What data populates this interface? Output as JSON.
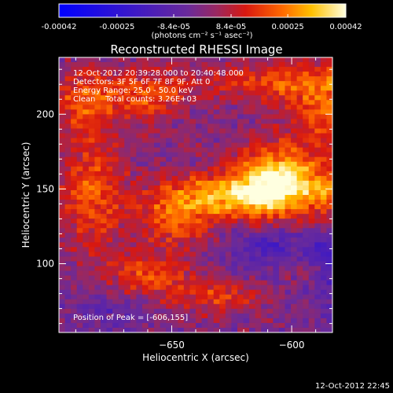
{
  "chart_data": {
    "type": "heatmap",
    "title": "Reconstructed RHESSI Image",
    "colorbar": {
      "tick_labels": [
        "-0.00042",
        "-0.00025",
        "-8.4e-05",
        "8.4e-05",
        "0.00025",
        "0.00042"
      ],
      "tick_values": [
        -0.00042,
        -0.00025,
        -8.4e-05,
        8.4e-05,
        0.00025,
        0.00042
      ],
      "range": [
        -0.00042,
        0.00042
      ],
      "units_label": "(photons cm⁻² s⁻¹ asec⁻²)"
    },
    "annotations": [
      "12-Oct-2012 20:39:28.000 to 20:40:48.000",
      "Detectors: 3F 5F 6F 7F 8F 9F, Att 0",
      "Energy Range: 25.0 - 50.0 keV",
      "Clean    Total counts: 3.26E+03"
    ],
    "peak_label": "Position of Peak = [-606,155]",
    "xlabel": "Heliocentric X (arcsec)",
    "ylabel": "Heliocentric Y (arcsec)",
    "xlim": [
      -697,
      -583
    ],
    "ylim": [
      54,
      238
    ],
    "xticks": [
      -650,
      -600,
      -550
    ],
    "yticks": [
      100,
      150,
      200
    ],
    "peak": [
      -606,
      155
    ],
    "sources": [
      {
        "x": -606,
        "y": 155,
        "amp": 0.0004,
        "sx": 12,
        "sy": 16
      },
      {
        "x": -627,
        "y": 146,
        "amp": 0.00026,
        "sx": 18,
        "sy": 10
      },
      {
        "x": -648,
        "y": 130,
        "amp": 0.00019,
        "sx": 12,
        "sy": 14
      },
      {
        "x": -683,
        "y": 150,
        "amp": 0.00021,
        "sx": 9,
        "sy": 26
      },
      {
        "x": -686,
        "y": 210,
        "amp": 0.0002,
        "sx": 9,
        "sy": 14
      },
      {
        "x": -660,
        "y": 212,
        "amp": 0.00018,
        "sx": 11,
        "sy": 12
      },
      {
        "x": -604,
        "y": 222,
        "amp": 0.00017,
        "sx": 24,
        "sy": 9
      },
      {
        "x": -585,
        "y": 200,
        "amp": 0.00019,
        "sx": 12,
        "sy": 18
      },
      {
        "x": -586,
        "y": 150,
        "amp": 0.00017,
        "sx": 6,
        "sy": 9
      },
      {
        "x": -574,
        "y": 125,
        "amp": 0.00014,
        "sx": 10,
        "sy": 10
      },
      {
        "x": -660,
        "y": 92,
        "amp": 0.00017,
        "sx": 12,
        "sy": 10
      },
      {
        "x": -632,
        "y": 78,
        "amp": 0.00015,
        "sx": 14,
        "sy": 8
      },
      {
        "x": -555,
        "y": 228,
        "amp": 0.00015,
        "sx": 14,
        "sy": 8
      },
      {
        "x": -595,
        "y": 97,
        "amp": 0.0001,
        "sx": 8,
        "sy": 8
      },
      {
        "x": -546,
        "y": 145,
        "amp": 0.00012,
        "sx": 10,
        "sy": 8
      },
      {
        "x": -565,
        "y": 105,
        "amp": -0.00026,
        "sx": 20,
        "sy": 14
      },
      {
        "x": -548,
        "y": 80,
        "amp": -0.00018,
        "sx": 22,
        "sy": 16
      },
      {
        "x": -611,
        "y": 110,
        "amp": -0.00012,
        "sx": 14,
        "sy": 10
      },
      {
        "x": -675,
        "y": 68,
        "amp": -8e-05,
        "sx": 12,
        "sy": 10
      }
    ],
    "colormap": [
      {
        "v": 0.0,
        "color": "#0000ff"
      },
      {
        "v": 0.25,
        "color": "#3a18c8"
      },
      {
        "v": 0.45,
        "color": "#6a2a9a"
      },
      {
        "v": 0.55,
        "color": "#9a2860"
      },
      {
        "v": 0.65,
        "color": "#d81810"
      },
      {
        "v": 0.78,
        "color": "#ff6a00"
      },
      {
        "v": 0.88,
        "color": "#ffc000"
      },
      {
        "v": 1.0,
        "color": "#ffffe0"
      }
    ],
    "peak_annotation_color": "#ffffff"
  },
  "footer": {
    "timestamp": "12-Oct-2012 22:45"
  }
}
